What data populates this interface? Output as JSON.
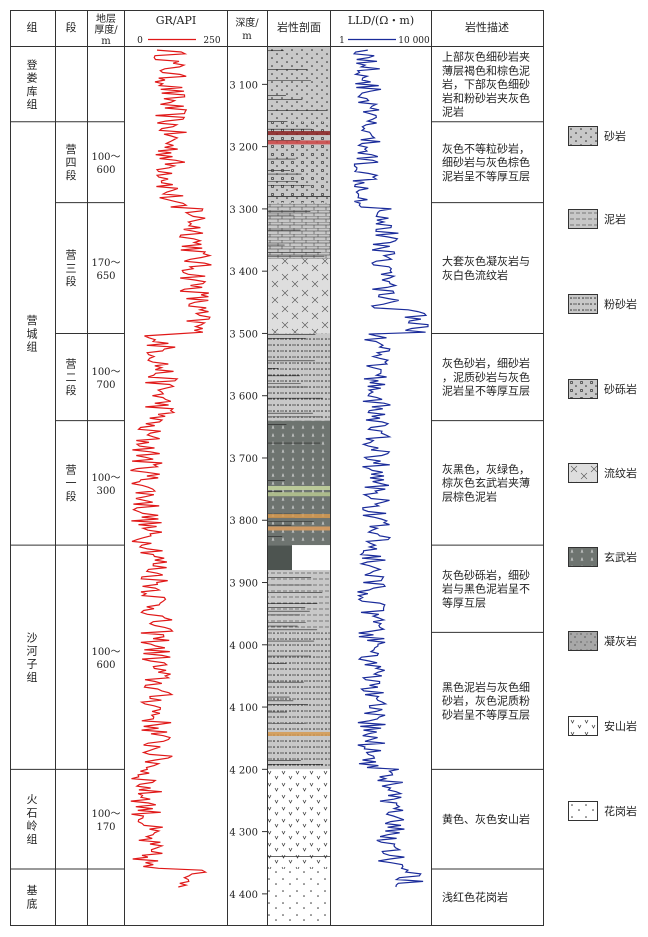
{
  "header": {
    "group": "组",
    "section": "段",
    "thickness": [
      "地层",
      "厚度/",
      "m"
    ],
    "gr_title": "GR/API",
    "gr_min": "0",
    "gr_max": "250",
    "depth": [
      "深度/",
      "m"
    ],
    "lith": "岩性剖面",
    "lld_title": "LLD/(Ω・m)",
    "lld_min": "1",
    "lld_max": "10 000",
    "desc": "岩性描述"
  },
  "groups": [
    {
      "name": "登娄库组",
      "from": 3040,
      "to": 3160
    },
    {
      "name": "营城组",
      "from": 3160,
      "to": 3840
    },
    {
      "name": "沙河子组",
      "from": 3840,
      "to": 4200
    },
    {
      "name": "火石岭组",
      "from": 4200,
      "to": 4360
    },
    {
      "name": "基底",
      "from": 4360,
      "to": 4450
    }
  ],
  "sections": [
    {
      "name": "",
      "thickness": "",
      "from": 3040,
      "to": 3160
    },
    {
      "name": "营四段",
      "thickness": "100～600",
      "from": 3160,
      "to": 3290
    },
    {
      "name": "营三段",
      "thickness": "170～650",
      "from": 3290,
      "to": 3500
    },
    {
      "name": "营二段",
      "thickness": "100～700",
      "from": 3500,
      "to": 3640
    },
    {
      "name": "营一段",
      "thickness": "100～300",
      "from": 3640,
      "to": 3840
    },
    {
      "name": "",
      "thickness": "100～600",
      "from": 3840,
      "to": 4200
    },
    {
      "name": "",
      "thickness": "100～170",
      "from": 4200,
      "to": 4360
    },
    {
      "name": "",
      "thickness": "",
      "from": 4360,
      "to": 4450
    }
  ],
  "descriptions": [
    {
      "text": "上部灰色细砂岩夹薄层褐色和棕色泥岩，下部灰色细砂岩和粉砂岩夹灰色泥岩",
      "from": 3040,
      "to": 3160
    },
    {
      "text": "灰色不等粒砂岩，细砂岩与灰色棕色泥岩呈不等厚互层",
      "from": 3160,
      "to": 3290
    },
    {
      "text": "大套灰色凝灰岩与灰白色流纹岩",
      "from": 3290,
      "to": 3500
    },
    {
      "text": "灰色砂岩，细砂岩，泥质砂岩与灰色泥岩呈不等厚互层",
      "from": 3500,
      "to": 3640
    },
    {
      "text": "灰黑色，灰绿色，棕灰色玄武岩夹薄层棕色泥岩",
      "from": 3640,
      "to": 3840
    },
    {
      "text": "灰色砂砾岩，细砂岩与黑色泥岩呈不等厚互层",
      "from": 3840,
      "to": 3980
    },
    {
      "text": "黑色泥岩与灰色细砂岩，灰色泥质粉砂岩呈不等厚互层",
      "from": 3980,
      "to": 4200
    },
    {
      "text": "黄色、灰色安山岩",
      "from": 4200,
      "to": 4360
    },
    {
      "text": "浅红色花岗岩",
      "from": 4360,
      "to": 4450
    }
  ],
  "depth_ticks": [
    "3 100",
    "3 200",
    "3 300",
    "3 400",
    "3 500",
    "3 600",
    "3 700",
    "3 800",
    "3 900",
    "4 000",
    "4 100",
    "4 200",
    "4 300",
    "4 400"
  ],
  "legend": [
    {
      "label": "砂岩",
      "pattern": "sandstone"
    },
    {
      "label": "泥岩",
      "pattern": "mudstone"
    },
    {
      "label": "粉砂岩",
      "pattern": "siltstone"
    },
    {
      "label": "砂砾岩",
      "pattern": "conglomerate"
    },
    {
      "label": "流纹岩",
      "pattern": "rhyolite"
    },
    {
      "label": "玄武岩",
      "pattern": "basalt"
    },
    {
      "label": "凝灰岩",
      "pattern": "tuff"
    },
    {
      "label": "安山岩",
      "pattern": "andesite"
    },
    {
      "label": "花岗岩",
      "pattern": "granite"
    }
  ],
  "colors": {
    "gr": "#e01818",
    "lld": "#1a2b9a",
    "grid": "#333333"
  }
}
